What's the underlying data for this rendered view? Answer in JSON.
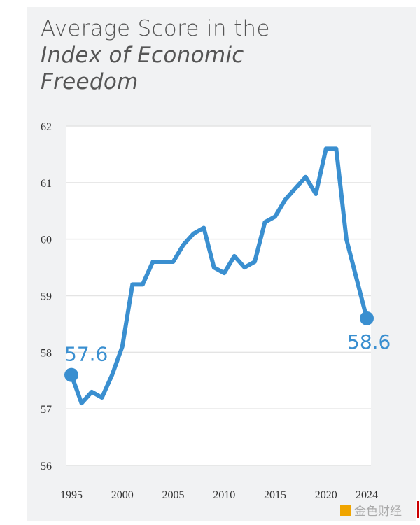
{
  "chart_data": {
    "type": "line",
    "title_line1": "Average Score in the",
    "title_line2": "Index of Economic",
    "title_line3": "Freedom",
    "xlabel": "",
    "ylabel": "",
    "ylim": [
      56,
      62
    ],
    "xlim": [
      1995,
      2024
    ],
    "grid": true,
    "yticks": [
      "56",
      "57",
      "58",
      "59",
      "60",
      "61",
      "62"
    ],
    "xticks": [
      "1995",
      "2000",
      "2005",
      "2010",
      "2015",
      "2020",
      "2024"
    ],
    "x": [
      1995,
      1996,
      1997,
      1998,
      1999,
      2000,
      2001,
      2002,
      2003,
      2004,
      2005,
      2006,
      2007,
      2008,
      2009,
      2010,
      2011,
      2012,
      2013,
      2014,
      2015,
      2016,
      2017,
      2018,
      2019,
      2020,
      2021,
      2022,
      2023,
      2024
    ],
    "series": [
      {
        "name": "Average Score",
        "color": "#3a8fd0",
        "values": [
          57.6,
          57.1,
          57.3,
          57.2,
          57.6,
          58.1,
          59.2,
          59.2,
          59.6,
          59.6,
          59.6,
          59.9,
          60.1,
          60.2,
          59.5,
          59.4,
          59.7,
          59.5,
          59.6,
          60.3,
          60.4,
          60.7,
          60.9,
          61.1,
          60.8,
          61.6,
          61.6,
          60.0,
          59.3,
          58.6
        ]
      }
    ],
    "annotations": {
      "start": "57.6",
      "end": "58.6"
    }
  },
  "watermark": "金色财经"
}
